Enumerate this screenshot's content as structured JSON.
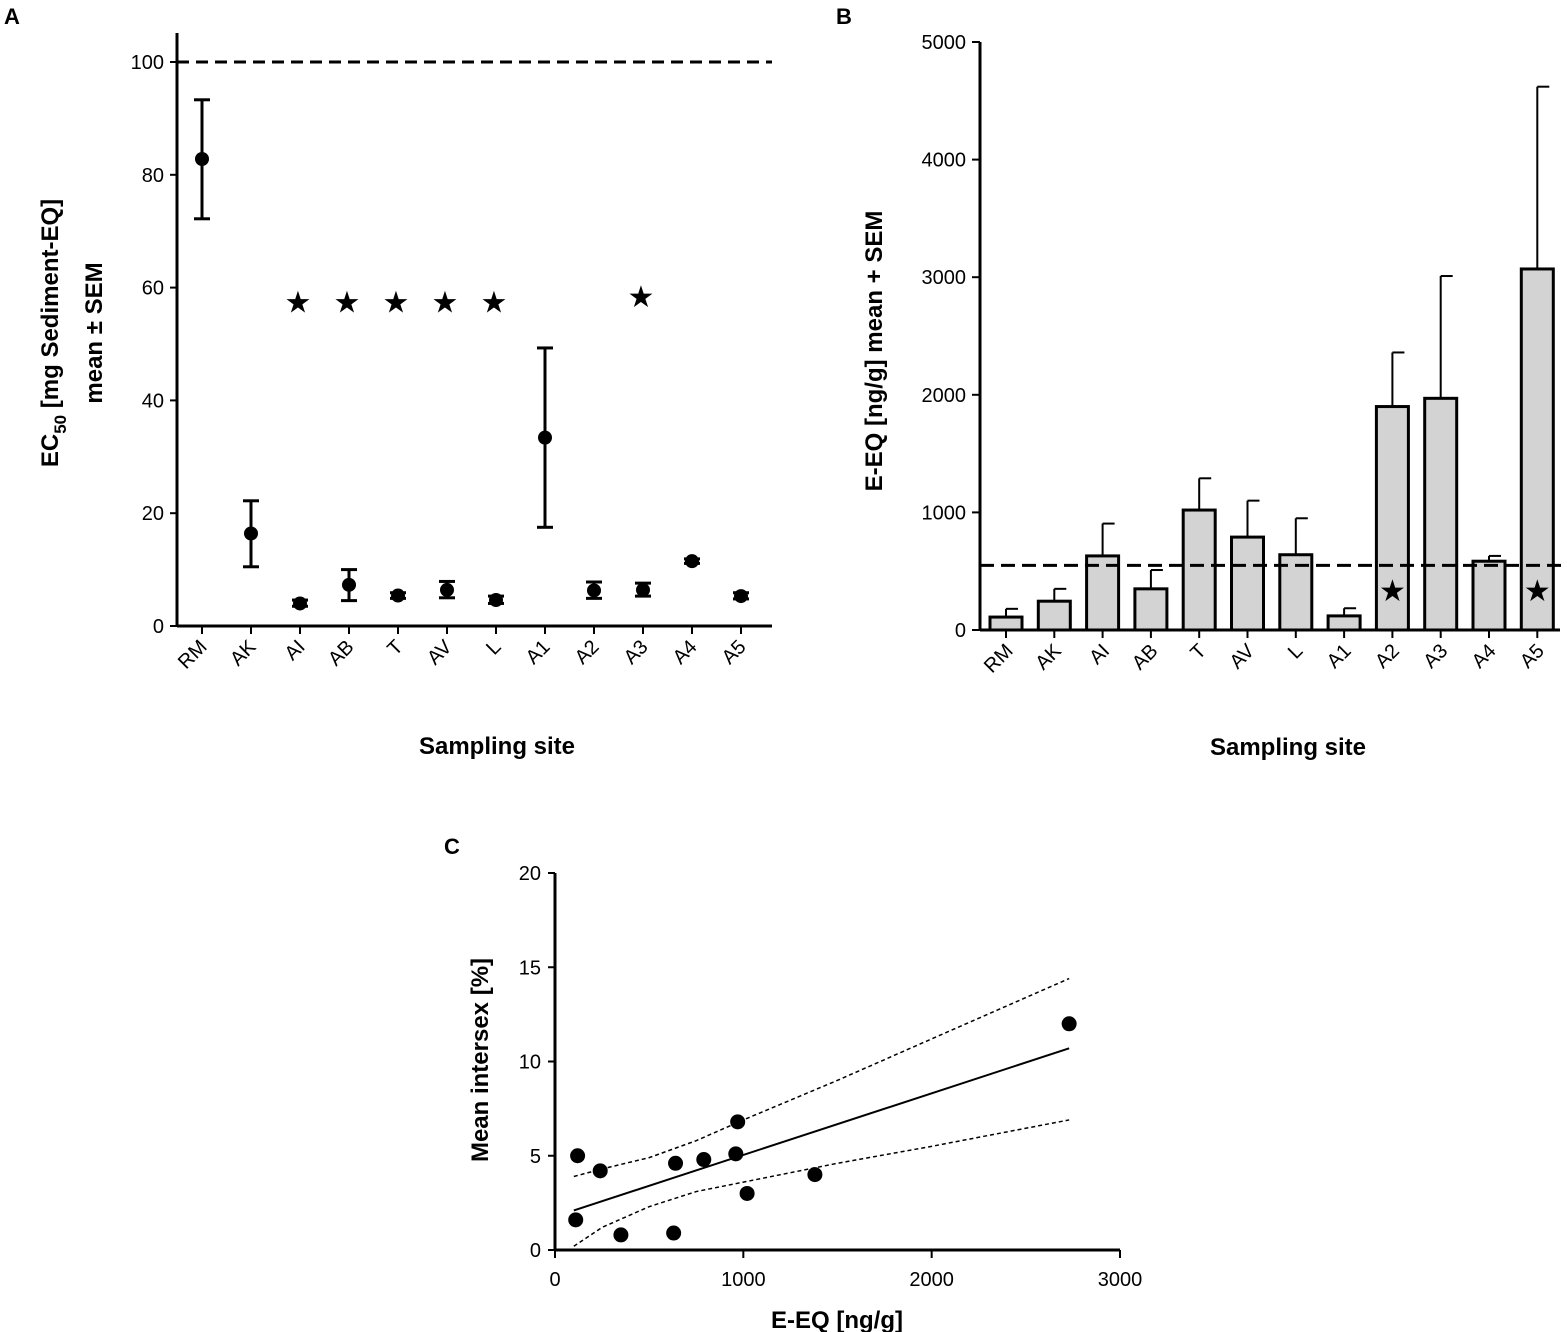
{
  "chart_data": [
    {
      "panel": "A",
      "type": "scatter",
      "xlabel": "Sampling site",
      "ylabel_line1": "EC",
      "ylabel_sub": "50",
      "ylabel_rest": " [mg Sediment-EQ]",
      "ylabel_line2": "mean ± SEM",
      "categories": [
        "RM",
        "AK",
        "AI",
        "AB",
        "T",
        "AV",
        "L",
        "A1",
        "A2",
        "A3",
        "A4",
        "A5"
      ],
      "values": [
        82.8,
        16.4,
        4.0,
        7.3,
        5.4,
        6.4,
        4.6,
        33.4,
        6.3,
        6.4,
        11.5,
        5.3
      ],
      "err_low": [
        72.2,
        10.5,
        3.5,
        4.5,
        4.9,
        5.0,
        4.0,
        17.5,
        4.9,
        5.3,
        11.1,
        4.8
      ],
      "err_high": [
        93.3,
        22.2,
        4.6,
        10.0,
        5.9,
        7.9,
        5.3,
        49.3,
        7.8,
        7.6,
        11.9,
        5.9
      ],
      "reference_line": 100,
      "significant": [
        "AI",
        "AB",
        "T",
        "AV",
        "L",
        "A3"
      ],
      "star_y": [
        57.5,
        57.5,
        57.5,
        57.5,
        57.5,
        58.5
      ],
      "star_glyph": "★",
      "ylim": [
        0,
        105
      ],
      "yticks": [
        0,
        20,
        40,
        60,
        80,
        100
      ]
    },
    {
      "panel": "B",
      "type": "bar",
      "xlabel": "Sampling site",
      "ylabel": "E-EQ [ng/g]  mean + SEM",
      "categories": [
        "RM",
        "AK",
        "AI",
        "AB",
        "T",
        "AV",
        "L",
        "A1",
        "A2",
        "A3",
        "A4",
        "A5"
      ],
      "values": [
        110,
        245,
        630,
        350,
        1020,
        790,
        640,
        120,
        1900,
        1970,
        585,
        3070
      ],
      "err_high": [
        180,
        350,
        905,
        510,
        1290,
        1100,
        950,
        185,
        2360,
        3010,
        630,
        4620
      ],
      "reference_line": 550,
      "significant": [
        "A2",
        "A5"
      ],
      "star_y": 340,
      "star_glyph": "★",
      "ylim": [
        0,
        5000
      ],
      "yticks": [
        0,
        1000,
        2000,
        3000,
        4000,
        5000
      ]
    },
    {
      "panel": "C",
      "type": "scatter",
      "xlabel": "E-EQ [ng/g]",
      "ylabel": "Mean intersex [%]",
      "x": [
        110,
        120,
        240,
        350,
        630,
        640,
        790,
        960,
        970,
        1020,
        1380,
        2730
      ],
      "y": [
        1.6,
        5.0,
        4.2,
        0.8,
        0.9,
        4.6,
        4.8,
        5.1,
        6.8,
        3.0,
        4.0,
        12.0
      ],
      "fit_line": {
        "x": [
          100,
          2730
        ],
        "y": [
          2.1,
          10.7
        ]
      },
      "ci_upper": {
        "x": [
          100,
          250,
          500,
          750,
          1000,
          1500,
          2000,
          2730
        ],
        "y": [
          3.9,
          4.3,
          4.9,
          5.8,
          6.9,
          9.0,
          11.2,
          14.4
        ]
      },
      "ci_lower": {
        "x": [
          100,
          250,
          500,
          750,
          1000,
          1500,
          2000,
          2730
        ],
        "y": [
          0.2,
          1.2,
          2.3,
          3.1,
          3.6,
          4.6,
          5.5,
          6.9
        ]
      },
      "xlim": [
        0,
        3000
      ],
      "ylim": [
        0,
        20
      ],
      "xticks": [
        0,
        1000,
        2000,
        3000
      ],
      "yticks": [
        0,
        5,
        10,
        15,
        20
      ]
    }
  ]
}
